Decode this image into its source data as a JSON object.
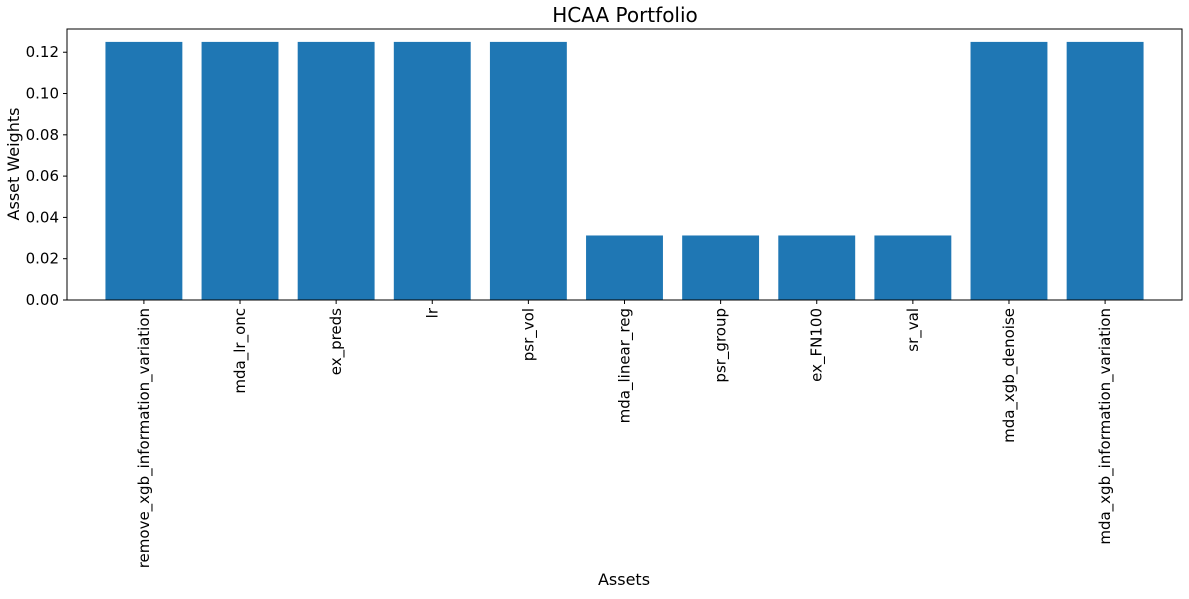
{
  "chart_data": {
    "type": "bar",
    "title": "HCAA Portfolio",
    "xlabel": "Assets",
    "ylabel": "Asset Weights",
    "categories": [
      "remove_xgb_information_variation",
      "mda_lr_onc",
      "ex_preds",
      "lr",
      "psr_vol",
      "mda_linear_reg",
      "psr_group",
      "ex_FN100",
      "sr_val",
      "mda_xgb_denoise",
      "mda_xgb_information_variation"
    ],
    "values": [
      0.125,
      0.125,
      0.125,
      0.125,
      0.125,
      0.03125,
      0.03125,
      0.03125,
      0.03125,
      0.125,
      0.125
    ],
    "ylim": [
      0,
      0.13125
    ],
    "yticks": [
      "0.00",
      "0.02",
      "0.04",
      "0.06",
      "0.08",
      "0.10",
      "0.12"
    ],
    "bar_color": "#1f77b4",
    "grid": false,
    "legend": false,
    "x_tick_rotation": "vertical"
  }
}
